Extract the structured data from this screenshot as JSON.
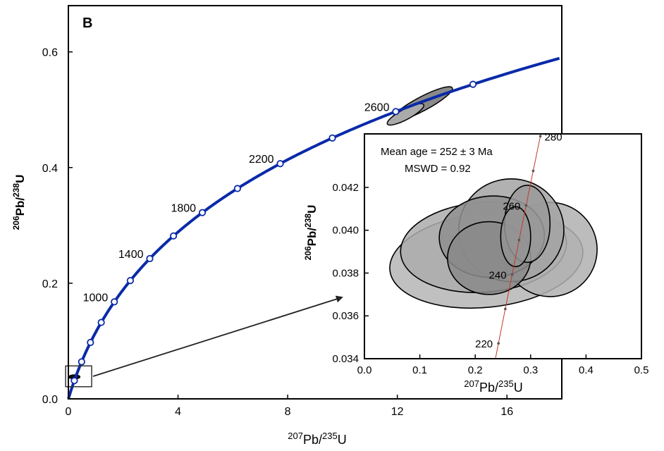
{
  "chart_data": [
    {
      "type": "line",
      "panel_label": "B",
      "xlabel": {
        "sup1": "207",
        "base1": "Pb/",
        "sup2": "235",
        "base2": "U"
      },
      "ylabel": {
        "sup1": "206",
        "base1": "Pb/",
        "sup2": "238",
        "base2": "U"
      },
      "xlim": [
        0,
        18
      ],
      "ylim": [
        0,
        0.68
      ],
      "xticks": [
        0,
        4,
        8,
        12,
        16
      ],
      "xtick_labels": [
        "0",
        "4",
        "8",
        "12",
        "16"
      ],
      "yticks": [
        0,
        0.2,
        0.4,
        0.6
      ],
      "ytick_labels": [
        "0.0",
        "0.2",
        "0.4",
        "0.6"
      ],
      "concordia_color": "#0a2aa8",
      "age_markers_ma": [
        200,
        400,
        600,
        800,
        1000,
        1200,
        1400,
        1600,
        1800,
        2000,
        2200,
        2400,
        2600,
        2800
      ],
      "age_labels": [
        {
          "age": 1000,
          "text": "1000"
        },
        {
          "age": 1400,
          "text": "1400"
        },
        {
          "age": 1800,
          "text": "1800"
        },
        {
          "age": 2200,
          "text": "2200"
        },
        {
          "age": 2600,
          "text": "2600"
        }
      ],
      "ellipses": [
        {
          "cx": 12.9,
          "cy": 0.51,
          "rx": 1.25,
          "ry": 0.012,
          "angle_deg": -28
        },
        {
          "cx": 12.3,
          "cy": 0.492,
          "rx": 0.75,
          "ry": 0.009,
          "angle_deg": -28
        },
        {
          "cx": 0.22,
          "cy": 0.038,
          "rx": 0.2,
          "ry": 0.0035,
          "angle_deg": 0
        }
      ],
      "zoom_box": {
        "x": [
          -0.1,
          0.85
        ],
        "y": [
          0.021,
          0.057
        ]
      }
    },
    {
      "type": "line",
      "panel": "inset",
      "xlabel": {
        "sup1": "207",
        "base1": "Pb/",
        "sup2": "235",
        "base2": "U"
      },
      "ylabel": {
        "sup1": "206",
        "base1": "Pb/",
        "sup2": "238",
        "base2": "U"
      },
      "xlim": [
        0,
        0.5
      ],
      "ylim": [
        0.034,
        0.0445
      ],
      "xticks": [
        0,
        0.1,
        0.2,
        0.3,
        0.4,
        0.5
      ],
      "xtick_labels": [
        "0.0",
        "0.1",
        "0.2",
        "0.3",
        "0.4",
        "0.5"
      ],
      "yticks": [
        0.034,
        0.036,
        0.038,
        0.04,
        0.042
      ],
      "ytick_labels": [
        "0.034",
        "0.036",
        "0.038",
        "0.040",
        "0.042"
      ],
      "annotation_lines": [
        "Mean age = 252 ± 3 Ma",
        "MSWD = 0.92"
      ],
      "concordia_color": "#c0392b",
      "age_labels": [
        {
          "age": 220,
          "text": "220"
        },
        {
          "age": 240,
          "text": "240"
        },
        {
          "age": 260,
          "text": "260"
        },
        {
          "age": 280,
          "text": "280"
        }
      ],
      "ellipses": [
        {
          "cx": 0.22,
          "cy": 0.0386,
          "rx": 0.175,
          "ry": 0.0022,
          "angle_deg": 6,
          "fill": "#b5b5b5"
        },
        {
          "cx": 0.215,
          "cy": 0.0392,
          "rx": 0.15,
          "ry": 0.0021,
          "angle_deg": 4,
          "fill": "#ababab"
        },
        {
          "cx": 0.335,
          "cy": 0.0391,
          "rx": 0.085,
          "ry": 0.0022,
          "angle_deg": 0,
          "fill": "#b0b0b0"
        },
        {
          "cx": 0.265,
          "cy": 0.04,
          "rx": 0.095,
          "ry": 0.0024,
          "angle_deg": 0,
          "fill": "#a3a3a3"
        },
        {
          "cx": 0.23,
          "cy": 0.0397,
          "rx": 0.095,
          "ry": 0.0019,
          "angle_deg": 3,
          "fill": "#8f8f8f"
        },
        {
          "cx": 0.225,
          "cy": 0.0387,
          "rx": 0.075,
          "ry": 0.0017,
          "angle_deg": 0,
          "fill": "#8a8a8a"
        },
        {
          "cx": 0.294,
          "cy": 0.0403,
          "rx": 0.041,
          "ry": 0.0018,
          "angle_deg": 0,
          "fill": "#9a9a9a"
        },
        {
          "cx": 0.273,
          "cy": 0.0397,
          "rx": 0.027,
          "ry": 0.0014,
          "angle_deg": 0,
          "fill": "#939393"
        }
      ]
    }
  ]
}
